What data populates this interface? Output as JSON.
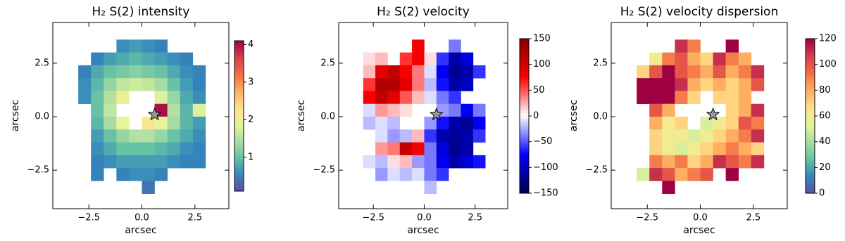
{
  "chart_data": [
    {
      "type": "heatmap",
      "title": "H₂ S(2) intensity",
      "xlabel": "arcsec",
      "ylabel": "arcsec",
      "xlim": [
        -4.2,
        4.1
      ],
      "ylim": [
        -4.3,
        4.4
      ],
      "xticks": [
        {
          "value": -2.5,
          "label": "−2.5"
        },
        {
          "value": 0,
          "label": "0.0"
        },
        {
          "value": 2.5,
          "label": "2.5"
        }
      ],
      "yticks": [
        {
          "value": -2.5,
          "label": "−2.5"
        },
        {
          "value": 0,
          "label": "0.0"
        },
        {
          "value": 2.5,
          "label": "2.5"
        }
      ],
      "x": [
        -3.3,
        -2.7,
        -2.1,
        -1.5,
        -0.9,
        -0.3,
        0.3,
        0.9,
        1.5,
        2.1,
        2.7,
        3.3
      ],
      "y": [
        3.3,
        2.7,
        2.1,
        1.5,
        0.9,
        0.3,
        -0.3,
        -0.9,
        -1.5,
        -2.1,
        -2.7,
        -3.3
      ],
      "z": [
        [
          null,
          null,
          null,
          null,
          0.6,
          0.7,
          0.6,
          0.5,
          null,
          null,
          null,
          null
        ],
        [
          null,
          null,
          0.5,
          0.7,
          0.8,
          0.9,
          0.8,
          0.7,
          0.6,
          0.5,
          null,
          null
        ],
        [
          null,
          0.5,
          0.8,
          1.0,
          1.1,
          1.2,
          1.1,
          1.0,
          0.8,
          0.6,
          0.5,
          null
        ],
        [
          null,
          0.6,
          0.9,
          1.3,
          1.6,
          1.7,
          1.6,
          1.4,
          1.0,
          0.7,
          0.5,
          null
        ],
        [
          null,
          0.6,
          1.0,
          1.5,
          2.0,
          null,
          null,
          1.8,
          1.3,
          0.8,
          0.6,
          null
        ],
        [
          null,
          null,
          1.0,
          1.6,
          null,
          null,
          null,
          4.0,
          1.5,
          0.9,
          1.8,
          null
        ],
        [
          null,
          null,
          0.9,
          1.4,
          1.9,
          null,
          2.2,
          1.9,
          1.4,
          0.9,
          0.7,
          null
        ],
        [
          null,
          null,
          0.7,
          1.0,
          1.3,
          1.5,
          1.5,
          1.3,
          1.0,
          0.8,
          0.6,
          null
        ],
        [
          null,
          null,
          0.6,
          0.8,
          1.0,
          1.0,
          1.0,
          0.9,
          0.8,
          0.6,
          0.5,
          null
        ],
        [
          null,
          null,
          0.5,
          0.6,
          0.7,
          0.7,
          0.7,
          0.7,
          0.6,
          0.5,
          0.5,
          null
        ],
        [
          null,
          null,
          0.5,
          null,
          0.5,
          0.6,
          0.6,
          0.5,
          null,
          null,
          null,
          null
        ],
        [
          null,
          null,
          null,
          null,
          null,
          null,
          0.4,
          null,
          null,
          null,
          null,
          null
        ]
      ],
      "star": {
        "x": 0.6,
        "y": 0.1
      },
      "clim": [
        0.1,
        4.1
      ],
      "cticks": [
        1,
        2,
        3,
        4
      ],
      "colormap": [
        "#5e4fa2",
        "#3288bd",
        "#66c2a5",
        "#abdda4",
        "#e6f598",
        "#fee08b",
        "#fdae61",
        "#f46d43",
        "#d53e4f",
        "#9e0142"
      ]
    },
    {
      "type": "heatmap",
      "title": "H₂ S(2) velocity",
      "xlabel": "arcsec",
      "ylabel": "arcsec",
      "xlim": [
        -4.2,
        4.1
      ],
      "ylim": [
        -4.3,
        4.4
      ],
      "xticks": [
        {
          "value": -2.5,
          "label": "−2.5"
        },
        {
          "value": 0,
          "label": "0.0"
        },
        {
          "value": 2.5,
          "label": "2.5"
        }
      ],
      "yticks": [
        {
          "value": -2.5,
          "label": "−2.5"
        },
        {
          "value": 0,
          "label": "0.0"
        },
        {
          "value": 2.5,
          "label": "2.5"
        }
      ],
      "x": [
        -3.3,
        -2.7,
        -2.1,
        -1.5,
        -0.9,
        -0.3,
        0.3,
        0.9,
        1.5,
        2.1,
        2.7,
        3.3
      ],
      "y": [
        3.3,
        2.7,
        2.1,
        1.5,
        0.9,
        0.3,
        -0.3,
        -0.9,
        -1.5,
        -2.1,
        -2.7,
        -3.3
      ],
      "z": [
        [
          null,
          null,
          null,
          null,
          null,
          80,
          null,
          null,
          -40,
          null,
          null,
          null
        ],
        [
          null,
          10,
          20,
          null,
          60,
          80,
          10,
          -60,
          -110,
          -90,
          null,
          null
        ],
        [
          null,
          20,
          90,
          110,
          80,
          40,
          -10,
          -80,
          -120,
          -110,
          -60,
          null
        ],
        [
          null,
          60,
          120,
          120,
          90,
          40,
          -20,
          -70,
          -110,
          -100,
          null,
          null
        ],
        [
          null,
          80,
          110,
          90,
          50,
          20,
          -10,
          -40,
          -60,
          null,
          null,
          null
        ],
        [
          null,
          -10,
          30,
          20,
          10,
          null,
          null,
          -30,
          -40,
          -80,
          -40,
          null
        ],
        [
          null,
          -20,
          -10,
          -20,
          null,
          null,
          -30,
          -70,
          -110,
          -120,
          -80,
          null
        ],
        [
          null,
          null,
          -10,
          -30,
          -20,
          20,
          -60,
          -110,
          -120,
          -110,
          -60,
          null
        ],
        [
          null,
          null,
          30,
          40,
          110,
          80,
          -40,
          -90,
          -120,
          -110,
          null,
          null
        ],
        [
          null,
          -10,
          -20,
          10,
          20,
          -30,
          -40,
          -80,
          -110,
          -90,
          -70,
          null
        ],
        [
          null,
          null,
          -30,
          -10,
          -20,
          -10,
          -40,
          -60,
          null,
          null,
          null,
          null
        ],
        [
          null,
          null,
          null,
          null,
          null,
          null,
          -20,
          null,
          null,
          null,
          null,
          null
        ]
      ],
      "star": {
        "x": 0.6,
        "y": 0.1
      },
      "clim": [
        -150,
        150
      ],
      "cticks": [
        {
          "value": -150,
          "label": "−150"
        },
        {
          "value": -100,
          "label": "−100"
        },
        {
          "value": -50,
          "label": "−50"
        },
        0,
        50,
        100,
        150
      ],
      "colormap": [
        "#00004c",
        "#0000ff",
        "#ffffff",
        "#ff0000",
        "#7f0000"
      ]
    },
    {
      "type": "heatmap",
      "title": "H₂ S(2) velocity dispersion",
      "xlabel": "arcsec",
      "ylabel": "arcsec",
      "xlim": [
        -4.2,
        4.1
      ],
      "ylim": [
        -4.3,
        4.4
      ],
      "xticks": [
        {
          "value": -2.5,
          "label": "−2.5"
        },
        {
          "value": 0,
          "label": "0.0"
        },
        {
          "value": 2.5,
          "label": "2.5"
        }
      ],
      "yticks": [
        {
          "value": -2.5,
          "label": "−2.5"
        },
        {
          "value": 0,
          "label": "0.0"
        },
        {
          "value": 2.5,
          "label": "2.5"
        }
      ],
      "x": [
        -3.3,
        -2.7,
        -2.1,
        -1.5,
        -0.9,
        -0.3,
        0.3,
        0.9,
        1.5,
        2.1,
        2.7,
        3.3
      ],
      "y": [
        3.3,
        2.7,
        2.1,
        1.5,
        0.9,
        0.3,
        -0.3,
        -0.9,
        -1.5,
        -2.1,
        -2.7,
        -3.3
      ],
      "z": [
        [
          null,
          null,
          null,
          null,
          110,
          90,
          null,
          null,
          120,
          null,
          null,
          null
        ],
        [
          null,
          null,
          60,
          90,
          100,
          80,
          70,
          110,
          90,
          80,
          null,
          null
        ],
        [
          null,
          70,
          100,
          120,
          100,
          90,
          80,
          100,
          80,
          90,
          110,
          null
        ],
        [
          null,
          120,
          120,
          120,
          110,
          80,
          70,
          80,
          70,
          80,
          100,
          null
        ],
        [
          null,
          120,
          120,
          120,
          90,
          70,
          null,
          70,
          70,
          80,
          null,
          null
        ],
        [
          null,
          null,
          100,
          80,
          null,
          null,
          null,
          null,
          70,
          80,
          110,
          null
        ],
        [
          null,
          null,
          80,
          60,
          70,
          null,
          50,
          60,
          70,
          100,
          90,
          null
        ],
        [
          null,
          null,
          70,
          60,
          60,
          50,
          60,
          70,
          80,
          90,
          110,
          null
        ],
        [
          null,
          null,
          70,
          60,
          50,
          60,
          70,
          80,
          90,
          80,
          70,
          null
        ],
        [
          null,
          null,
          90,
          80,
          90,
          70,
          80,
          110,
          100,
          90,
          110,
          null
        ],
        [
          null,
          50,
          110,
          100,
          80,
          90,
          100,
          null,
          120,
          null,
          null,
          null
        ],
        [
          null,
          null,
          null,
          120,
          null,
          null,
          null,
          null,
          null,
          null,
          null,
          null
        ]
      ],
      "star": {
        "x": 0.6,
        "y": 0.1
      },
      "clim": [
        0,
        120
      ],
      "cticks": [
        0,
        20,
        40,
        60,
        80,
        100,
        120
      ],
      "colormap": [
        "#5e4fa2",
        "#3288bd",
        "#66c2a5",
        "#abdda4",
        "#e6f598",
        "#fee08b",
        "#fdae61",
        "#f46d43",
        "#d53e4f",
        "#9e0142"
      ]
    }
  ]
}
